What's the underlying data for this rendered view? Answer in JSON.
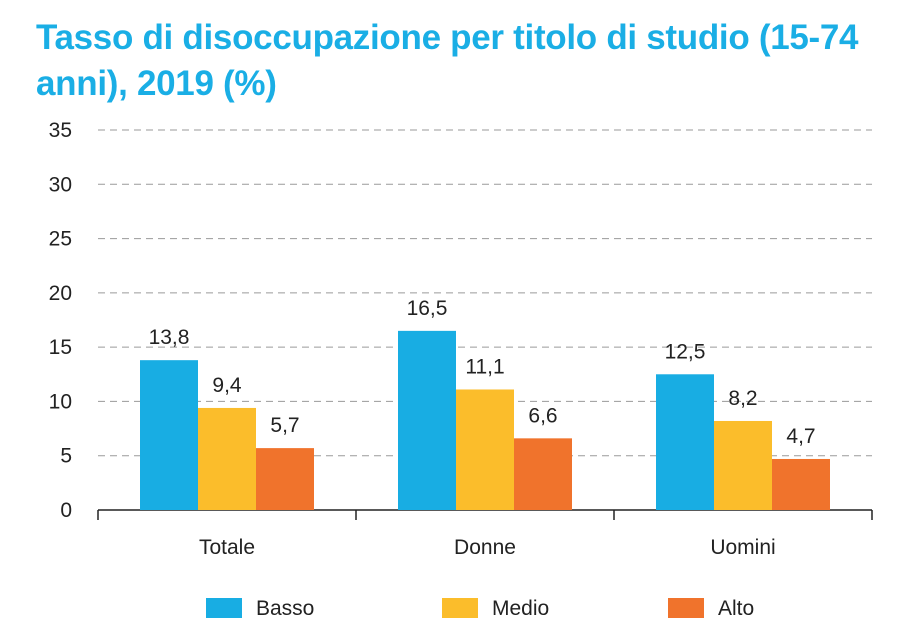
{
  "title_lines": [
    "Tasso di disoccupazione per titolo di studio (15-74",
    "anni), 2019 (%)"
  ],
  "chart_data": {
    "type": "bar",
    "title": "Tasso di disoccupazione per titolo di studio (15-74 anni), 2019 (%)",
    "categories": [
      "Totale",
      "Donne",
      "Uomini"
    ],
    "series": [
      {
        "name": "Basso",
        "values": [
          13.8,
          16.5,
          12.5
        ],
        "labels": [
          "13,8",
          "16,5",
          "12,5"
        ],
        "color": "#18ade3"
      },
      {
        "name": "Medio",
        "values": [
          9.4,
          11.1,
          8.2
        ],
        "labels": [
          "9,4",
          "11,1",
          "8,2"
        ],
        "color": "#fbbd2b"
      },
      {
        "name": "Alto",
        "values": [
          5.7,
          6.6,
          4.7
        ],
        "labels": [
          "5,7",
          "6,6",
          "4,7"
        ],
        "color": "#f0732c"
      }
    ],
    "ylim": [
      0,
      35
    ],
    "yticks": [
      0,
      5,
      10,
      15,
      20,
      25,
      30,
      35
    ],
    "grid": true,
    "legend_position": "bottom",
    "xlabel": "",
    "ylabel": ""
  }
}
